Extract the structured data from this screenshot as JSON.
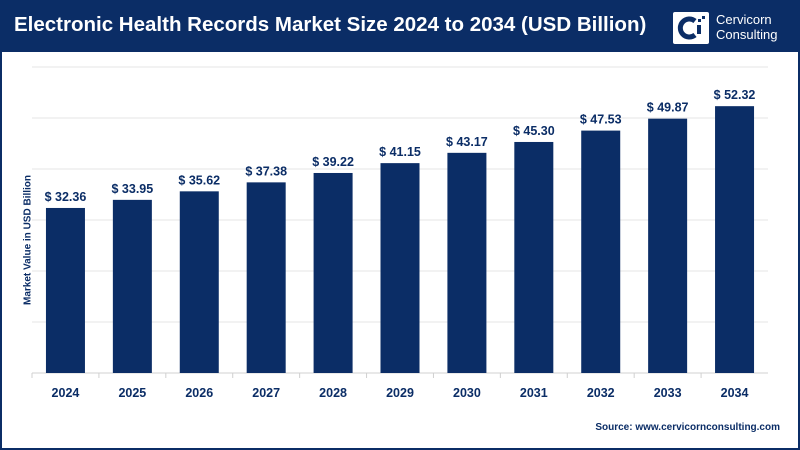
{
  "header": {
    "title": "Electronic Health Records Market Size 2024 to 2034 (USD Billion)",
    "logo_line1": "Cervicorn",
    "logo_line2": "Consulting"
  },
  "source": "Source: www.cervicornconsulting.com",
  "colors": {
    "bar": "#0b2d66",
    "header": "#0b2d66",
    "grid": "#e6e6e6"
  },
  "chart_data": {
    "type": "bar",
    "title": "Electronic Health Records Market Size 2024 to 2034 (USD Billion)",
    "xlabel": "",
    "ylabel": "Market Value in USD Billion",
    "ylim": [
      0,
      60
    ],
    "grid": true,
    "categories": [
      "2024",
      "2025",
      "2026",
      "2027",
      "2028",
      "2029",
      "2030",
      "2031",
      "2032",
      "2033",
      "2034"
    ],
    "values": [
      32.36,
      33.95,
      35.62,
      37.38,
      39.22,
      41.15,
      43.17,
      45.3,
      47.53,
      49.87,
      52.32
    ],
    "labels": [
      "$ 32.36",
      "$ 33.95",
      "$ 35.62",
      "$ 37.38",
      "$ 39.22",
      "$ 41.15",
      "$ 43.17",
      "$ 45.30",
      "$ 47.53",
      "$ 49.87",
      "$ 52.32"
    ]
  }
}
